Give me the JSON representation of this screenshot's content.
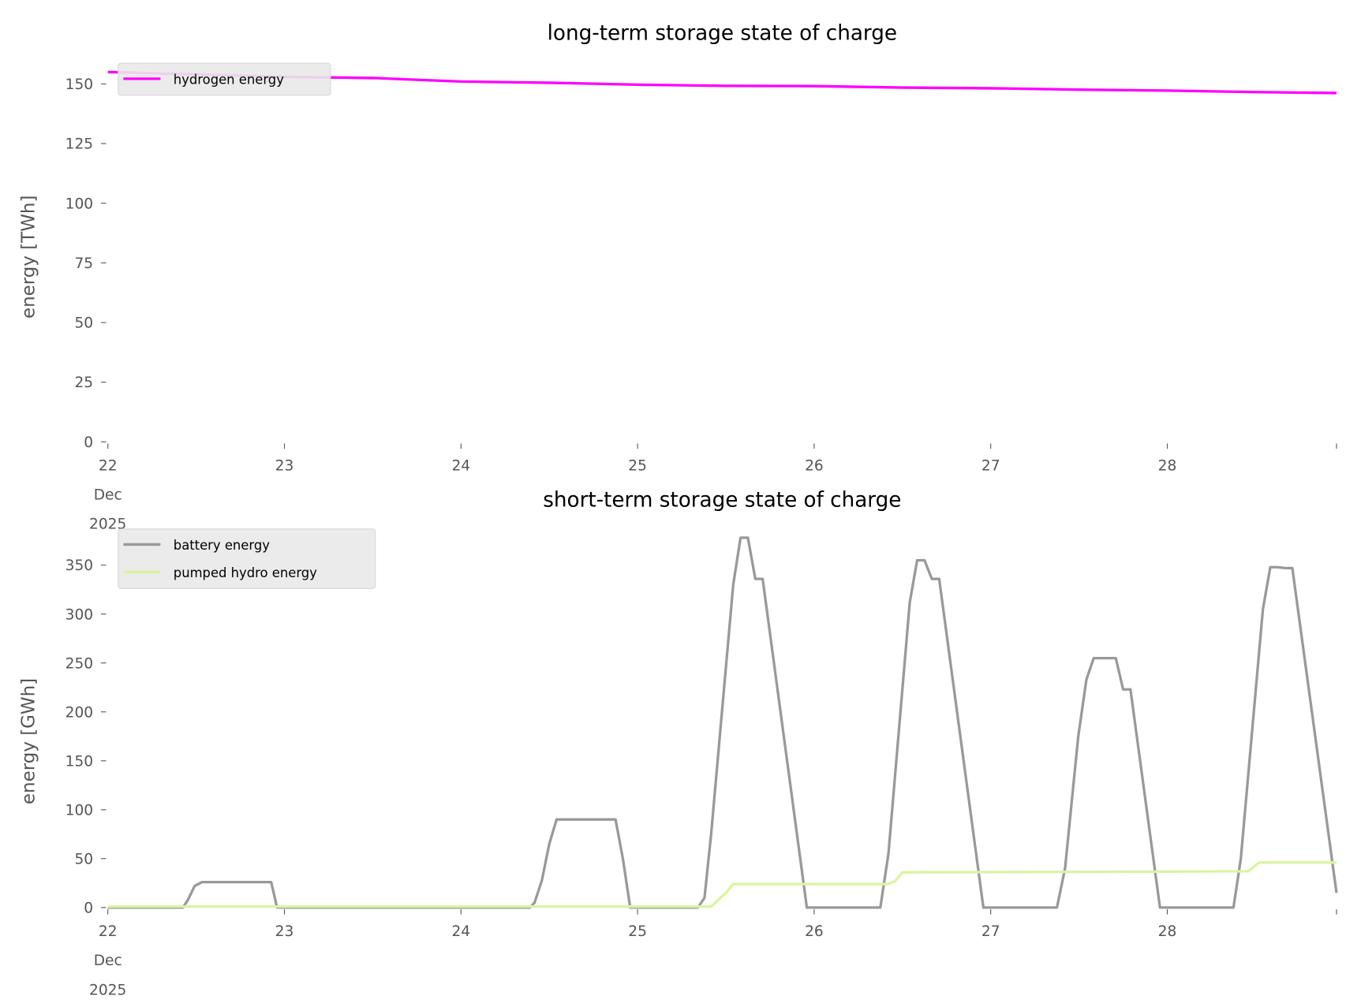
{
  "chart_data": [
    {
      "type": "line",
      "title": "long-term storage state of charge",
      "xlabel": "",
      "ylabel": "energy [TWh]",
      "x_unit": "hours since 2025-12-22 00:00",
      "xlim": [
        0,
        167
      ],
      "ylim": [
        0,
        155
      ],
      "yticks": [
        0,
        25,
        50,
        75,
        100,
        125,
        150
      ],
      "xticks": [
        0,
        24,
        48,
        72,
        96,
        120,
        144,
        167
      ],
      "xtick_labels": [
        "22",
        "23",
        "24",
        "25",
        "26",
        "27",
        "28",
        ""
      ],
      "xtick_sublabels": [
        "Dec",
        "2025"
      ],
      "grid": false,
      "legend_position": "top-left",
      "series": [
        {
          "name": "hydrogen energy",
          "color": "#ff00ff",
          "x": [
            0,
            24,
            36,
            48,
            60,
            72,
            84,
            96,
            108,
            120,
            132,
            144,
            156,
            167
          ],
          "y": [
            155,
            153,
            152.5,
            151,
            150.5,
            149.7,
            149.2,
            149.1,
            148.5,
            148.2,
            147.6,
            147.2,
            146.6,
            146.2
          ]
        }
      ]
    },
    {
      "type": "line",
      "title": "short-term storage state of charge",
      "xlabel": "",
      "ylabel": "energy [GWh]",
      "x_unit": "hours since 2025-12-22 00:00",
      "xlim": [
        0,
        167
      ],
      "ylim": [
        0,
        380
      ],
      "yticks": [
        0,
        50,
        100,
        150,
        200,
        250,
        300,
        350
      ],
      "xticks": [
        0,
        24,
        48,
        72,
        96,
        120,
        144,
        167
      ],
      "xtick_labels": [
        "22",
        "23",
        "24",
        "25",
        "26",
        "27",
        "28",
        ""
      ],
      "xtick_sublabels": [
        "Dec",
        "2025"
      ],
      "grid": false,
      "legend_position": "top-left",
      "series": [
        {
          "name": "battery energy",
          "color": "#999999",
          "x": [
            0,
            10.2,
            10.9,
            11.8,
            12.8,
            22.2,
            23,
            57.4,
            58,
            59,
            60,
            61,
            69,
            70,
            71,
            80.2,
            81.1,
            82,
            85,
            86,
            87,
            88,
            89,
            95,
            105,
            106.1,
            109,
            110,
            111,
            112,
            113,
            119,
            129,
            130.1,
            131.9,
            133,
            134,
            137,
            138,
            139,
            143,
            153,
            154,
            157,
            158,
            159,
            160,
            161,
            167
          ],
          "y": [
            0,
            0,
            8,
            22,
            26,
            26,
            0,
            0,
            5,
            28,
            65,
            90,
            90,
            50,
            0,
            0,
            10,
            75,
            330,
            378,
            378,
            336,
            336,
            0,
            0,
            55,
            312,
            355,
            355,
            336,
            336,
            0,
            0,
            40,
            175,
            233,
            255,
            255,
            223,
            223,
            0,
            0,
            50,
            305,
            348,
            348,
            347,
            347,
            15
          ]
        },
        {
          "name": "pumped hydro energy",
          "color": "#d9f5a0",
          "x": [
            0,
            82,
            84,
            85,
            106,
            107,
            108,
            155,
            156.5,
            167
          ],
          "y": [
            1,
            1,
            15,
            24,
            24,
            27,
            36,
            37,
            46,
            46
          ]
        }
      ]
    }
  ]
}
